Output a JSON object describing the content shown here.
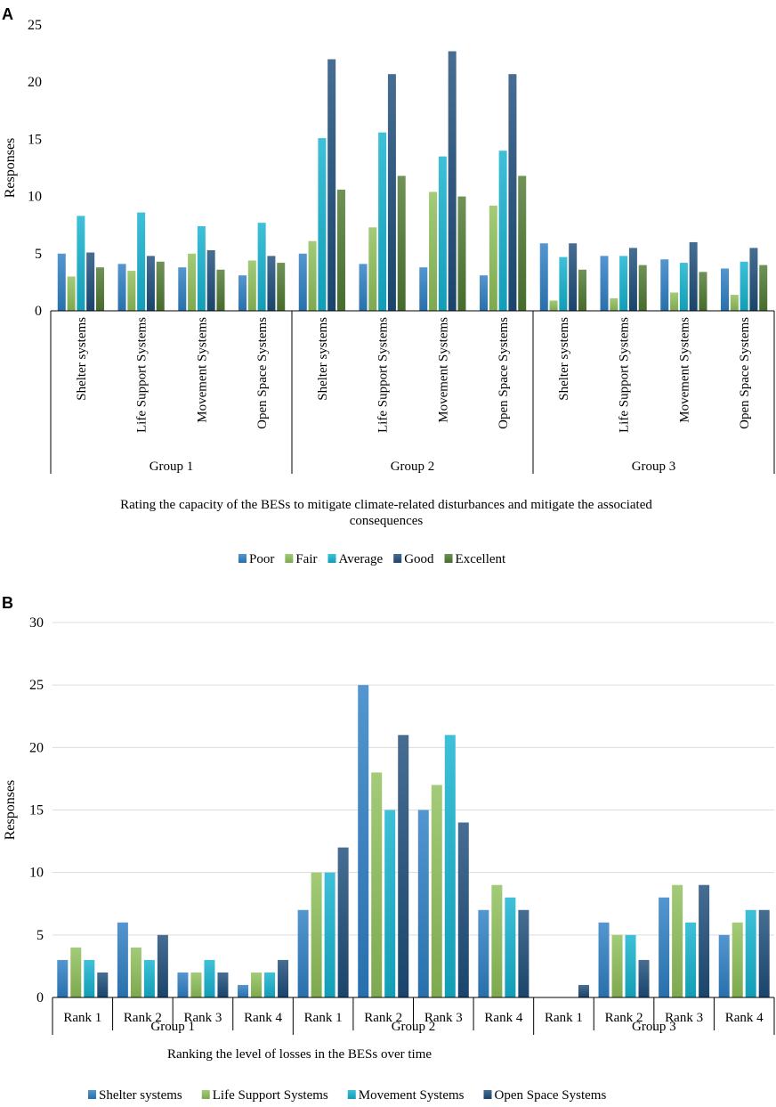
{
  "colors": {
    "Poor": "#2e7fc4",
    "Fair": "#8fc05a",
    "Average": "#14b2cf",
    "Good": "#1e4d7a",
    "Excellent": "#507a32",
    "Shelter systems": "#2e7fc4",
    "Life Support Systems": "#8fc05a",
    "Movement Systems": "#14b2cf",
    "Open Space Systems": "#1e4d7a"
  },
  "chart_data": [
    {
      "panel": "A",
      "type": "bar",
      "title": "",
      "ylabel": "Responses",
      "xlabel": "Rating the capacity of the BESs to mitigate climate-related disturbances and mitigate the associated consequences",
      "xlabel_lines": [
        "Rating the capacity of the BESs to mitigate climate-related disturbances and mitigate the associated",
        "consequences"
      ],
      "ylim": [
        0,
        25
      ],
      "yticks": [
        0,
        5,
        10,
        15,
        20,
        25
      ],
      "grid": false,
      "legend_position": "bottom",
      "groups": [
        "Group 1",
        "Group 2",
        "Group 3"
      ],
      "categories": [
        "Shelter systems",
        "Life Support Systems",
        "Movement Systems",
        "Open Space Systems"
      ],
      "series": [
        {
          "name": "Poor",
          "values": [
            [
              5.0,
              4.1,
              3.8,
              3.1
            ],
            [
              5.0,
              4.1,
              3.8,
              3.1
            ],
            [
              5.9,
              4.8,
              4.5,
              3.7
            ]
          ]
        },
        {
          "name": "Fair",
          "values": [
            [
              3.0,
              3.5,
              5.0,
              4.4
            ],
            [
              6.1,
              7.3,
              10.4,
              9.2
            ],
            [
              0.9,
              1.1,
              1.6,
              1.4
            ]
          ]
        },
        {
          "name": "Average",
          "values": [
            [
              8.3,
              8.6,
              7.4,
              7.7
            ],
            [
              15.1,
              15.6,
              13.5,
              14.0
            ],
            [
              4.7,
              4.8,
              4.2,
              4.3
            ]
          ]
        },
        {
          "name": "Good",
          "values": [
            [
              5.1,
              4.8,
              5.3,
              4.8
            ],
            [
              22.0,
              20.7,
              22.7,
              20.7
            ],
            [
              5.9,
              5.5,
              6.0,
              5.5
            ]
          ]
        },
        {
          "name": "Excellent",
          "values": [
            [
              3.8,
              4.3,
              3.6,
              4.2
            ],
            [
              10.6,
              11.8,
              10.0,
              11.8
            ],
            [
              3.6,
              4.0,
              3.4,
              4.0
            ]
          ]
        }
      ]
    },
    {
      "panel": "B",
      "type": "bar",
      "title": "",
      "ylabel": "Responses",
      "xlabel": "Ranking the level of losses in the BESs over time",
      "ylim": [
        0,
        30
      ],
      "yticks": [
        0,
        5,
        10,
        15,
        20,
        25,
        30
      ],
      "grid": true,
      "legend_position": "bottom",
      "groups": [
        "Group 1",
        "Group 2",
        "Group 3"
      ],
      "categories": [
        "Rank 1",
        "Rank 2",
        "Rank 3",
        "Rank 4"
      ],
      "series": [
        {
          "name": "Shelter systems",
          "values": [
            [
              3,
              6,
              2,
              1
            ],
            [
              7,
              25,
              15,
              7
            ],
            [
              0,
              6,
              8,
              5
            ]
          ]
        },
        {
          "name": "Life Support Systems",
          "values": [
            [
              4,
              4,
              2,
              2
            ],
            [
              10,
              18,
              17,
              9
            ],
            [
              0,
              5,
              9,
              6
            ]
          ]
        },
        {
          "name": "Movement Systems",
          "values": [
            [
              3,
              3,
              3,
              2
            ],
            [
              10,
              15,
              21,
              8
            ],
            [
              0,
              5,
              6,
              7
            ]
          ]
        },
        {
          "name": "Open Space Systems",
          "values": [
            [
              2,
              5,
              2,
              3
            ],
            [
              12,
              21,
              14,
              7
            ],
            [
              1,
              3,
              9,
              7
            ]
          ]
        }
      ]
    }
  ]
}
